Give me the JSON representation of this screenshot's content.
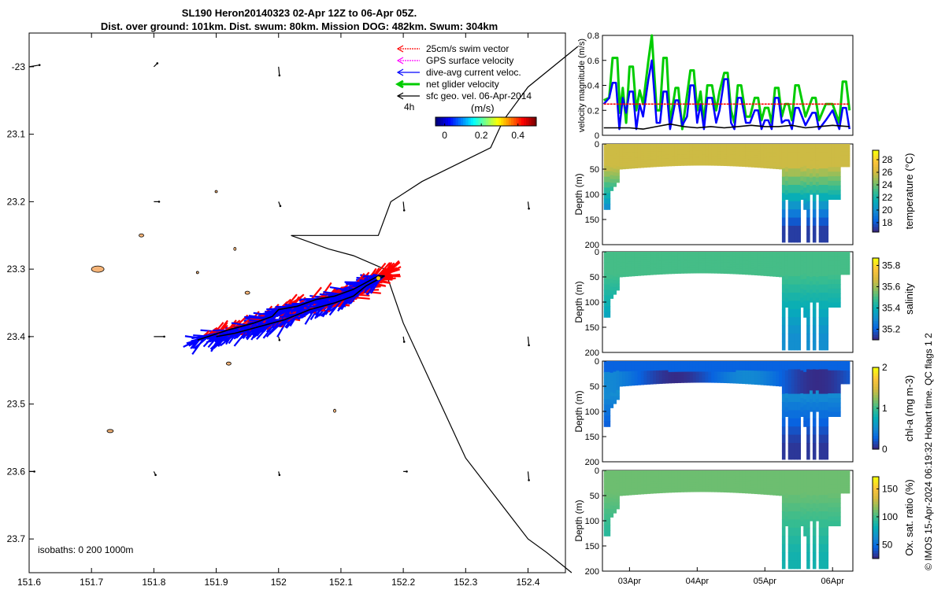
{
  "title": {
    "line1": "SL190 Heron20140323 02-Apr 12Z to 06-Apr 05Z.",
    "line2": "Dist. over ground: 101km. Dist. swum: 80km. Mission DOG: 482km. Swum: 304km"
  },
  "copyright": "© IMOS 15-Apr-2024 06:19:32 Hobart time. QC flags 1  2",
  "colors": {
    "swim": "#ff0000",
    "gps": "#ff00ff",
    "dive_avg": "#0000ff",
    "net": "#00cc00",
    "sfc_geo": "#000000",
    "land": "#f5b478"
  },
  "chart_data": [
    {
      "id": "map",
      "type": "scatter",
      "xlim": [
        151.6,
        152.46
      ],
      "ylim": [
        -23.75,
        -22.95
      ],
      "x_ticks": [
        "151.6",
        "151.7",
        "151.8",
        "151.9",
        "152",
        "152.1",
        "152.2",
        "152.3",
        "152.4"
      ],
      "x_tick_values": [
        151.6,
        151.7,
        151.8,
        151.9,
        152.0,
        152.1,
        152.2,
        152.3,
        152.4
      ],
      "y_ticks": [
        "-23",
        "23.1",
        "23.2",
        "23.3",
        "23.4",
        "23.5",
        "23.6",
        "23.7"
      ],
      "y_tick_values": [
        -23.0,
        -23.1,
        -23.2,
        -23.3,
        -23.4,
        -23.5,
        -23.6,
        -23.7
      ],
      "legend": [
        {
          "label": "25cm/s swim vector",
          "color_key": "swim"
        },
        {
          "label": "GPS surface velocity",
          "color_key": "gps"
        },
        {
          "label": "dive-avg current veloc.",
          "color_key": "dive_avg"
        },
        {
          "label": "net glider velocity",
          "color_key": "net"
        },
        {
          "label": "sfc geo. vel. 06-Apr-2014",
          "color_key": "sfc_geo"
        }
      ],
      "legend_placement": "top-right",
      "scale_label": "4h",
      "colorbar": {
        "label": "(m/s)",
        "ticks": [
          "0",
          "0.2",
          "0.4"
        ],
        "tick_values": [
          0,
          0.2,
          0.4
        ],
        "range": [
          -0.05,
          0.5
        ]
      },
      "isobaths_label": "isobaths: 0   200  1000m",
      "isobath_line": {
        "lon": [
          152.47,
          152.43,
          152.4,
          152.3,
          152.2,
          152.17,
          152.12,
          152.08,
          152.02,
          152.16,
          152.18,
          152.23,
          152.34,
          152.36,
          152.4,
          152.48
        ],
        "lat": [
          -23.75,
          -23.72,
          -23.7,
          -23.58,
          -23.38,
          -23.3,
          -23.28,
          -23.27,
          -23.25,
          -23.25,
          -23.2,
          -23.17,
          -23.12,
          -23.08,
          -23.03,
          -22.97
        ]
      },
      "track": {
        "lon": [
          151.87,
          151.92,
          151.96,
          151.99,
          152.0,
          152.03,
          152.06,
          152.09,
          152.12,
          152.14,
          152.16,
          152.17,
          152.14,
          152.12,
          152.09,
          152.05,
          152.01,
          151.97,
          151.93,
          151.9
        ],
        "lat": [
          -23.405,
          -23.39,
          -23.38,
          -23.37,
          -23.36,
          -23.355,
          -23.345,
          -23.34,
          -23.33,
          -23.32,
          -23.31,
          -23.31,
          -23.325,
          -23.34,
          -23.35,
          -23.36,
          -23.375,
          -23.385,
          -23.395,
          -23.4
        ]
      },
      "islands": [
        {
          "lon": 151.71,
          "lat": -23.3,
          "rx": 8,
          "ry": 4
        },
        {
          "lon": 151.78,
          "lat": -23.25,
          "rx": 3,
          "ry": 2
        },
        {
          "lon": 151.93,
          "lat": -23.27,
          "rx": 1.5,
          "ry": 2
        },
        {
          "lon": 151.87,
          "lat": -23.305,
          "rx": 1.5,
          "ry": 1.5
        },
        {
          "lon": 151.95,
          "lat": -23.335,
          "rx": 3,
          "ry": 2
        },
        {
          "lon": 151.9,
          "lat": -23.185,
          "rx": 1.5,
          "ry": 1.5
        },
        {
          "lon": 151.92,
          "lat": -23.44,
          "rx": 3,
          "ry": 2
        },
        {
          "lon": 151.73,
          "lat": -23.54,
          "rx": 4,
          "ry": 2
        },
        {
          "lon": 152.09,
          "lat": -23.51,
          "rx": 1.5,
          "ry": 2
        }
      ],
      "sfc_vectors": [
        {
          "lon": 151.6,
          "lat": -23.0,
          "u": 0.6,
          "v": 0.1
        },
        {
          "lon": 151.8,
          "lat": -23.0,
          "u": 0.2,
          "v": 0.2
        },
        {
          "lon": 152.0,
          "lat": -23.0,
          "u": 0.05,
          "v": -0.5
        },
        {
          "lon": 151.8,
          "lat": -23.2,
          "u": 0.3,
          "v": 0.0
        },
        {
          "lon": 152.0,
          "lat": -23.2,
          "u": 0.1,
          "v": -0.25
        },
        {
          "lon": 152.2,
          "lat": -23.2,
          "u": 0.05,
          "v": -0.5
        },
        {
          "lon": 152.4,
          "lat": -23.2,
          "u": 0.05,
          "v": -0.4
        },
        {
          "lon": 151.8,
          "lat": -23.4,
          "u": 0.6,
          "v": 0.0
        },
        {
          "lon": 152.0,
          "lat": -23.4,
          "u": 0.05,
          "v": -0.2
        },
        {
          "lon": 152.2,
          "lat": -23.4,
          "u": 0.05,
          "v": -0.3
        },
        {
          "lon": 152.4,
          "lat": -23.4,
          "u": 0.05,
          "v": -0.5
        },
        {
          "lon": 151.6,
          "lat": -23.6,
          "u": 0.3,
          "v": 0.0
        },
        {
          "lon": 151.8,
          "lat": -23.6,
          "u": 0.1,
          "v": -0.2
        },
        {
          "lon": 152.0,
          "lat": -23.6,
          "u": 0.05,
          "v": -0.2
        },
        {
          "lon": 152.2,
          "lat": -23.6,
          "u": 0.2,
          "v": 0.0
        },
        {
          "lon": 152.4,
          "lat": -23.6,
          "u": 0.05,
          "v": -0.5
        },
        {
          "lon": 151.6,
          "lat": -23.4,
          "u": 0.0,
          "v": 0.0
        }
      ]
    },
    {
      "id": "velocity",
      "type": "line",
      "ylabel": "velocity magnitude (m/s)",
      "ylim": [
        0,
        0.8
      ],
      "y_ticks": [
        "0",
        "0.2",
        "0.4",
        "0.6",
        "0.8"
      ],
      "y_tick_values": [
        0,
        0.2,
        0.4,
        0.6,
        0.8
      ],
      "x_range_days": [
        2.6,
        6.3
      ],
      "series": [
        {
          "color_key": "net",
          "x": [
            2.62,
            2.7,
            2.75,
            2.82,
            2.86,
            2.9,
            2.95,
            3.0,
            3.05,
            3.1,
            3.15,
            3.2,
            3.28,
            3.33,
            3.4,
            3.45,
            3.5,
            3.55,
            3.6,
            3.68,
            3.72,
            3.78,
            3.85,
            3.9,
            3.95,
            4.0,
            4.05,
            4.1,
            4.15,
            4.22,
            4.28,
            4.33,
            4.4,
            4.45,
            4.5,
            4.55,
            4.6,
            4.65,
            4.72,
            4.78,
            4.85,
            4.9,
            4.95,
            5.0,
            5.05,
            5.1,
            5.15,
            5.2,
            5.25,
            5.3,
            5.35,
            5.4,
            5.45,
            5.5,
            5.6,
            5.7,
            5.75,
            5.8,
            5.9,
            6.0,
            6.1,
            6.15,
            6.2,
            6.25
          ],
          "y": [
            0.28,
            0.3,
            0.62,
            0.62,
            0.18,
            0.38,
            0.1,
            0.55,
            0.55,
            0.2,
            0.36,
            0.25,
            0.6,
            0.8,
            0.2,
            0.2,
            0.62,
            0.62,
            0.1,
            0.38,
            0.38,
            0.05,
            0.32,
            0.52,
            0.52,
            0.2,
            0.35,
            0.1,
            0.4,
            0.4,
            0.2,
            0.35,
            0.5,
            0.5,
            0.2,
            0.1,
            0.4,
            0.4,
            0.15,
            0.15,
            0.3,
            0.3,
            0.12,
            0.22,
            0.22,
            0.1,
            0.38,
            0.38,
            0.15,
            0.25,
            0.25,
            0.12,
            0.4,
            0.4,
            0.15,
            0.3,
            0.3,
            0.12,
            0.25,
            0.25,
            0.1,
            0.43,
            0.43,
            0.2
          ]
        },
        {
          "color_key": "dive_avg",
          "x": [
            2.62,
            2.7,
            2.75,
            2.8,
            2.85,
            2.9,
            2.95,
            3.0,
            3.05,
            3.1,
            3.15,
            3.2,
            3.28,
            3.33,
            3.4,
            3.45,
            3.5,
            3.55,
            3.6,
            3.68,
            3.72,
            3.78,
            3.85,
            3.9,
            3.95,
            4.0,
            4.05,
            4.1,
            4.15,
            4.22,
            4.28,
            4.33,
            4.4,
            4.45,
            4.5,
            4.55,
            4.6,
            4.65,
            4.72,
            4.78,
            4.85,
            4.9,
            4.95,
            5.0,
            5.05,
            5.1,
            5.15,
            5.2,
            5.25,
            5.3,
            5.35,
            5.4,
            5.45,
            5.5,
            5.6,
            5.7,
            5.75,
            5.8,
            5.9,
            6.0,
            6.1,
            6.15,
            6.2,
            6.25
          ],
          "y": [
            0.25,
            0.3,
            0.42,
            0.42,
            0.05,
            0.3,
            0.18,
            0.35,
            0.35,
            0.05,
            0.25,
            0.15,
            0.45,
            0.6,
            0.1,
            0.1,
            0.35,
            0.35,
            0.05,
            0.28,
            0.28,
            0.08,
            0.15,
            0.4,
            0.4,
            0.1,
            0.25,
            0.05,
            0.3,
            0.3,
            0.1,
            0.2,
            0.45,
            0.45,
            0.1,
            0.05,
            0.3,
            0.3,
            0.1,
            0.1,
            0.2,
            0.2,
            0.05,
            0.12,
            0.12,
            0.05,
            0.3,
            0.3,
            0.1,
            0.12,
            0.12,
            0.05,
            0.22,
            0.22,
            0.08,
            0.18,
            0.18,
            0.05,
            0.12,
            0.2,
            0.05,
            0.22,
            0.22,
            0.05
          ]
        },
        {
          "color_key": "sfc_geo",
          "x": [
            2.62,
            2.8,
            3.0,
            3.2,
            3.4,
            3.6,
            3.8,
            4.0,
            4.2,
            4.4,
            4.6,
            4.8,
            5.0,
            5.2,
            5.4,
            5.6,
            5.8,
            6.0,
            6.25
          ],
          "y": [
            0.06,
            0.06,
            0.06,
            0.05,
            0.07,
            0.09,
            0.07,
            0.06,
            0.07,
            0.06,
            0.07,
            0.08,
            0.07,
            0.07,
            0.08,
            0.06,
            0.07,
            0.08,
            0.07
          ]
        },
        {
          "color_key": "swim",
          "x": [
            2.62,
            6.25
          ],
          "y": [
            0.25,
            0.25
          ]
        }
      ]
    },
    {
      "id": "temperature",
      "type": "heatmap",
      "ylabel": "Depth (m)",
      "cbar_label": "temperature (°C)",
      "cbar_ticks": [
        "18",
        "20",
        "22",
        "24",
        "26",
        "28"
      ],
      "cbar_tick_values": [
        18,
        20,
        22,
        24,
        26,
        28
      ],
      "clim": [
        16.5,
        29.5
      ],
      "y_ticks": [
        "0",
        "50",
        "100",
        "150",
        "200"
      ],
      "y_tick_values": [
        0,
        50,
        100,
        150,
        200
      ],
      "surface_value": 26.0,
      "deep_value": 17.0
    },
    {
      "id": "salinity",
      "type": "heatmap",
      "ylabel": "Depth (m)",
      "cbar_label": "salinity",
      "cbar_ticks": [
        "35.2",
        "35.4",
        "35.6",
        "35.8"
      ],
      "cbar_tick_values": [
        35.2,
        35.4,
        35.6,
        35.8
      ],
      "clim": [
        35.1,
        35.87
      ],
      "y_ticks": [
        "0",
        "50",
        "100",
        "150",
        "200"
      ],
      "y_tick_values": [
        0,
        50,
        100,
        150,
        200
      ],
      "surface_value": 35.5,
      "deep_value": 35.3
    },
    {
      "id": "chla",
      "type": "heatmap",
      "ylabel": "Depth (m)",
      "cbar_label": "chl-a (mg m-3)",
      "cbar_ticks": [
        "0",
        "1",
        "2"
      ],
      "cbar_tick_values": [
        0,
        1,
        2
      ],
      "clim": [
        0,
        2
      ],
      "y_ticks": [
        "0",
        "50",
        "100",
        "150",
        "200"
      ],
      "y_tick_values": [
        0,
        50,
        100,
        150,
        200
      ],
      "surface_value": 0.6,
      "deep_value": 0.05
    },
    {
      "id": "oxygen",
      "type": "heatmap",
      "ylabel": "Depth (m)",
      "cbar_label": "Ox. sat. ratio (%)",
      "cbar_ticks": [
        "50",
        "100",
        "150"
      ],
      "cbar_tick_values": [
        50,
        100,
        150
      ],
      "clim": [
        25,
        172
      ],
      "y_ticks": [
        "0",
        "50",
        "100",
        "150",
        "200"
      ],
      "y_tick_values": [
        0,
        50,
        100,
        150,
        200
      ],
      "surface_value": 110,
      "deep_value": 85,
      "x_ticks": [
        "03Apr",
        "04Apr",
        "05Apr",
        "06Apr"
      ],
      "x_tick_values": [
        3,
        4,
        5,
        6
      ]
    }
  ]
}
